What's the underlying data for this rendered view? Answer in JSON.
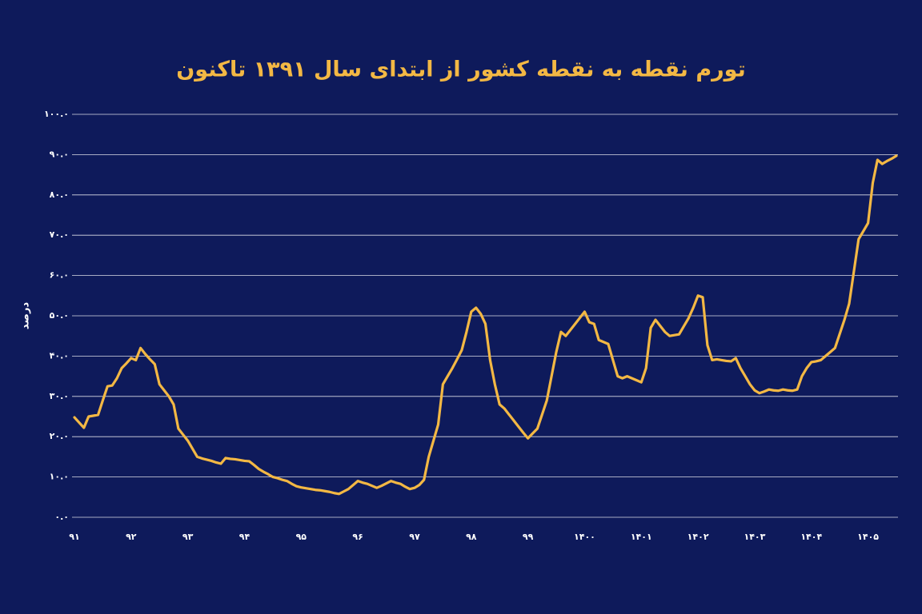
{
  "chart_data": {
    "type": "line",
    "title": "تورم نقطه به نقطه کشور از ابتدای سال ۱۳۹۱ تاکنون",
    "y_label": "درصد",
    "categories": [
      "۹۱",
      null,
      null,
      null,
      null,
      null,
      null,
      null,
      null,
      null,
      null,
      null,
      "۹۲",
      null,
      null,
      null,
      null,
      null,
      null,
      null,
      null,
      null,
      null,
      null,
      "۹۳",
      null,
      null,
      null,
      null,
      null,
      null,
      null,
      null,
      null,
      null,
      null,
      "۹۴",
      null,
      null,
      null,
      null,
      null,
      null,
      null,
      null,
      null,
      null,
      null,
      "۹۵",
      null,
      null,
      null,
      null,
      null,
      null,
      null,
      null,
      null,
      null,
      null,
      "۹۶",
      null,
      null,
      null,
      null,
      null,
      null,
      null,
      null,
      null,
      null,
      null,
      "۹۷",
      null,
      null,
      null,
      null,
      null,
      null,
      null,
      null,
      null,
      null,
      null,
      "۹۸",
      null,
      null,
      null,
      null,
      null,
      null,
      null,
      null,
      null,
      null,
      null,
      "۹۹",
      null,
      null,
      null,
      null,
      null,
      null,
      null,
      null,
      null,
      null,
      null,
      "۱۴۰۰",
      null,
      null,
      null,
      null,
      null,
      null,
      null,
      null,
      null,
      null,
      null,
      "۱۴۰۱",
      null,
      null,
      null,
      null,
      null,
      null,
      null,
      null,
      null,
      null,
      null,
      "۱۴۰۲",
      null,
      null,
      null,
      null,
      null,
      null,
      null,
      null,
      null,
      null,
      null,
      "۱۴۰۳",
      null,
      null,
      null,
      null,
      null,
      null,
      null,
      null,
      null,
      null,
      null,
      "۱۴۰۴",
      null,
      null,
      null,
      null,
      null,
      null,
      null,
      null,
      null,
      null,
      null,
      "۱۴۰۵",
      null,
      null,
      null,
      null,
      null,
      null
    ],
    "values": [
      24.8,
      23.5,
      22.2,
      25,
      25.2,
      25.4,
      29,
      32.5,
      32.7,
      34.5,
      37,
      38.2,
      39.5,
      39,
      42,
      40.5,
      39.2,
      38,
      33,
      31.5,
      30,
      28,
      22,
      20.5,
      19,
      17,
      15,
      14.6,
      14.3,
      14,
      13.6,
      13.3,
      14.7,
      14.5,
      14.4,
      14.2,
      14,
      13.9,
      13,
      12,
      11.3,
      10.7,
      10,
      9.7,
      9.3,
      9,
      8.3,
      7.7,
      7.4,
      7.2,
      7,
      6.8,
      6.7,
      6.5,
      6.3,
      6,
      5.8,
      6.4,
      7,
      8,
      9,
      8.6,
      8.3,
      7.8,
      7.3,
      7.8,
      8.4,
      9,
      8.6,
      8.3,
      7.6,
      7,
      7.3,
      8,
      9.3,
      15,
      19,
      23,
      33,
      35,
      37,
      39.2,
      41.5,
      46,
      51,
      52,
      50.5,
      48,
      39,
      33,
      28,
      27,
      25.5,
      24,
      22.5,
      21,
      19.6,
      20.8,
      22,
      25.5,
      29,
      35,
      41,
      46,
      45,
      46.5,
      48,
      49.5,
      51,
      48.4,
      48,
      44,
      43.5,
      43,
      39,
      35,
      34.5,
      35,
      34.5,
      34,
      33.5,
      37,
      47,
      49,
      47.5,
      46,
      45,
      45.2,
      45.4,
      47.4,
      49.4,
      52,
      55,
      54.6,
      42.7,
      39,
      39.2,
      39,
      38.8,
      38.7,
      39.5,
      37,
      35,
      33,
      31.5,
      30.8,
      31.2,
      31.7,
      31.5,
      31.4,
      31.7,
      31.5,
      31.4,
      31.7,
      35,
      37,
      38.5,
      38.7,
      39,
      40,
      41,
      42,
      45.5,
      49,
      53,
      61,
      69,
      71,
      73,
      83,
      88.7,
      87.7,
      88.4,
      89,
      89.7
    ],
    "color": "#f3b844",
    "ylim": [
      0,
      100
    ],
    "yticks": [
      {
        "value": 0,
        "label": "۰.۰"
      },
      {
        "value": 10,
        "label": "۱۰.۰"
      },
      {
        "value": 20,
        "label": "۲۰.۰"
      },
      {
        "value": 30,
        "label": "۳۰.۰"
      },
      {
        "value": 40,
        "label": "۴۰.۰"
      },
      {
        "value": 50,
        "label": "۵۰.۰"
      },
      {
        "value": 60,
        "label": "۶۰.۰"
      },
      {
        "value": 70,
        "label": "۷۰.۰"
      },
      {
        "value": 80,
        "label": "۸۰.۰"
      },
      {
        "value": 90,
        "label": "۹۰.۰"
      },
      {
        "value": 100,
        "label": "۱۰۰.۰"
      }
    ],
    "grid": true
  }
}
